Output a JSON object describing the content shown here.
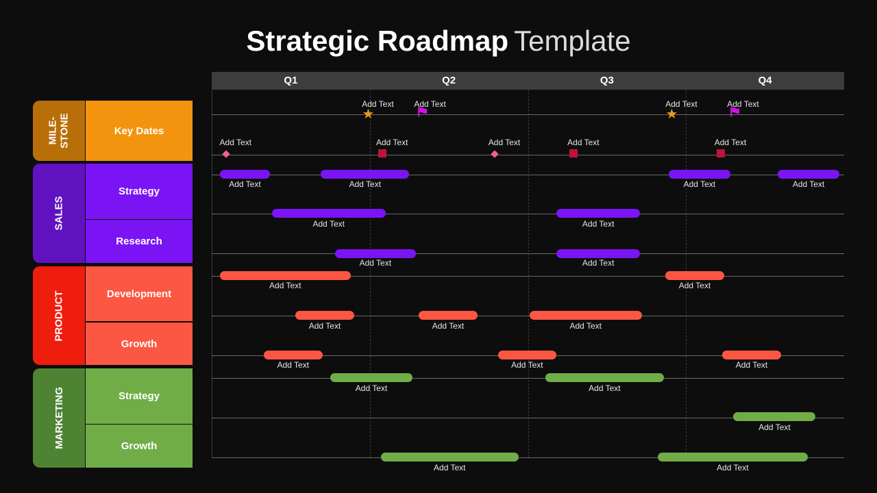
{
  "title": {
    "bold": "Strategic Roadmap",
    "light": "Template"
  },
  "quarters": [
    "Q1",
    "Q2",
    "Q3",
    "Q4"
  ],
  "categories": [
    {
      "name": "MILE-\nSTONE",
      "color": "#b96f09",
      "subs": [
        {
          "name": "Key Dates",
          "color": "#f3940f"
        }
      ]
    },
    {
      "name": "SALES",
      "color": "#6012c0",
      "subs": [
        {
          "name": "Strategy",
          "color": "#7b14f5"
        },
        {
          "name": "Research",
          "color": "#7b14f5"
        }
      ]
    },
    {
      "name": "PRODUCT",
      "color": "#ee1d0e",
      "subs": [
        {
          "name": "Development",
          "color": "#fb5742"
        },
        {
          "name": "Growth",
          "color": "#fb5742"
        }
      ]
    },
    {
      "name": "MARKETING",
      "color": "#4f8334",
      "subs": [
        {
          "name": "Strategy",
          "color": "#70ad47"
        },
        {
          "name": "Growth",
          "color": "#70ad47"
        }
      ]
    }
  ],
  "colors": {
    "sales": "#7b14f5",
    "product": "#fb5742",
    "marketing": "#70ad47",
    "star": "#f2931e",
    "flag": "#d211e6",
    "diamond": "#f0608a",
    "square": "#c0123a"
  },
  "milestones": [
    {
      "type": "star",
      "label": "Add Text",
      "q": 0.99
    },
    {
      "type": "flag",
      "label": "Add Text",
      "q": 1.32
    },
    {
      "type": "star",
      "label": "Add Text",
      "q": 2.91
    },
    {
      "type": "flag",
      "label": "Add Text",
      "q": 3.3
    },
    {
      "type": "diamond",
      "label": "Add Text",
      "q": 0.09
    },
    {
      "type": "square",
      "label": "Add Text",
      "q": 1.08
    },
    {
      "type": "diamond",
      "label": "Add Text",
      "q": 1.79
    },
    {
      "type": "square",
      "label": "Add Text",
      "q": 2.29
    },
    {
      "type": "square",
      "label": "Add Text",
      "q": 3.22
    }
  ],
  "bars": [
    {
      "lane": 0,
      "group": "sales",
      "start": 0.05,
      "end": 0.37,
      "label": "Add Text"
    },
    {
      "lane": 0,
      "group": "sales",
      "start": 0.69,
      "end": 1.25,
      "label": "Add Text"
    },
    {
      "lane": 0,
      "group": "sales",
      "start": 2.89,
      "end": 3.28,
      "label": "Add Text"
    },
    {
      "lane": 0,
      "group": "sales",
      "start": 3.58,
      "end": 3.97,
      "label": "Add Text"
    },
    {
      "lane": 1,
      "group": "sales",
      "start": 0.38,
      "end": 1.1,
      "label": "Add Text"
    },
    {
      "lane": 1,
      "group": "sales",
      "start": 2.18,
      "end": 2.71,
      "label": "Add Text"
    },
    {
      "lane": 2,
      "group": "sales",
      "start": 0.78,
      "end": 1.29,
      "label": "Add Text"
    },
    {
      "lane": 2,
      "group": "sales",
      "start": 2.18,
      "end": 2.71,
      "label": "Add Text"
    },
    {
      "lane": 3,
      "group": "product",
      "start": 0.05,
      "end": 0.88,
      "label": "Add Text"
    },
    {
      "lane": 3,
      "group": "product",
      "start": 2.87,
      "end": 3.24,
      "label": "Add Text"
    },
    {
      "lane": 4,
      "group": "product",
      "start": 0.53,
      "end": 0.9,
      "label": "Add Text"
    },
    {
      "lane": 4,
      "group": "product",
      "start": 1.31,
      "end": 1.68,
      "label": "Add Text"
    },
    {
      "lane": 4,
      "group": "product",
      "start": 2.01,
      "end": 2.72,
      "label": "Add Text"
    },
    {
      "lane": 5,
      "group": "product",
      "start": 0.33,
      "end": 0.7,
      "label": "Add Text"
    },
    {
      "lane": 5,
      "group": "product",
      "start": 1.81,
      "end": 2.18,
      "label": "Add Text"
    },
    {
      "lane": 5,
      "group": "product",
      "start": 3.23,
      "end": 3.6,
      "label": "Add Text"
    },
    {
      "lane": 6,
      "group": "marketing",
      "start": 0.75,
      "end": 1.27,
      "label": "Add Text"
    },
    {
      "lane": 6,
      "group": "marketing",
      "start": 2.11,
      "end": 2.86,
      "label": "Add Text"
    },
    {
      "lane": 7,
      "group": "marketing",
      "start": 3.3,
      "end": 3.82,
      "label": "Add Text"
    },
    {
      "lane": 8,
      "group": "marketing",
      "start": 1.07,
      "end": 1.94,
      "label": "Add Text"
    },
    {
      "lane": 8,
      "group": "marketing",
      "start": 2.82,
      "end": 3.77,
      "label": "Add Text"
    }
  ]
}
